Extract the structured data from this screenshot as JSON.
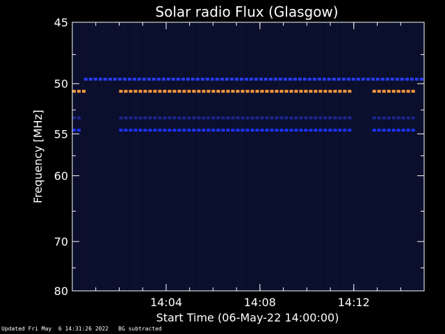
{
  "chart_data": {
    "type": "heatmap",
    "title": "Solar radio Flux (Glasgow)",
    "xlabel": "Start Time (06-May-22 14:00:00)",
    "ylabel": "Frequency [MHz]",
    "x_unit": "minutes",
    "xlim": [
      14.0,
      14.25
    ],
    "x_ticks": [
      {
        "value": 14.0667,
        "label": "14:04"
      },
      {
        "value": 14.1333,
        "label": "14:08"
      },
      {
        "value": 14.2,
        "label": "14:12"
      }
    ],
    "ylim": [
      45,
      80
    ],
    "y_ticks": [
      45,
      50,
      55,
      60,
      70,
      80
    ],
    "y_scale": "reciprocal",
    "background_color": "#0a0e2a",
    "features": [
      {
        "name": "orange band",
        "freq": 50.7,
        "color": "#ff9a3c",
        "segments": [
          [
            14.0,
            14.0083
          ],
          [
            14.0333,
            14.1983
          ],
          [
            14.2133,
            14.2417
          ]
        ]
      },
      {
        "name": "blue band upper",
        "freq": 49.6,
        "color": "#2a3cff",
        "segments": [
          [
            14.0083,
            14.25
          ]
        ]
      },
      {
        "name": "blue band lower",
        "freq": 54.6,
        "color": "#1e32ff",
        "segments": [
          [
            14.0,
            14.005
          ],
          [
            14.0333,
            14.1983
          ],
          [
            14.2133,
            14.2417
          ]
        ]
      },
      {
        "name": "blue band faint",
        "freq": 53.3,
        "color": "#1a2690",
        "segments": [
          [
            14.0,
            14.005
          ],
          [
            14.0333,
            14.1983
          ],
          [
            14.2133,
            14.2417
          ]
        ]
      }
    ]
  },
  "footer": {
    "updated": "Updated Fri May  6 14:31:26 2022",
    "note": "BG subtracted"
  }
}
